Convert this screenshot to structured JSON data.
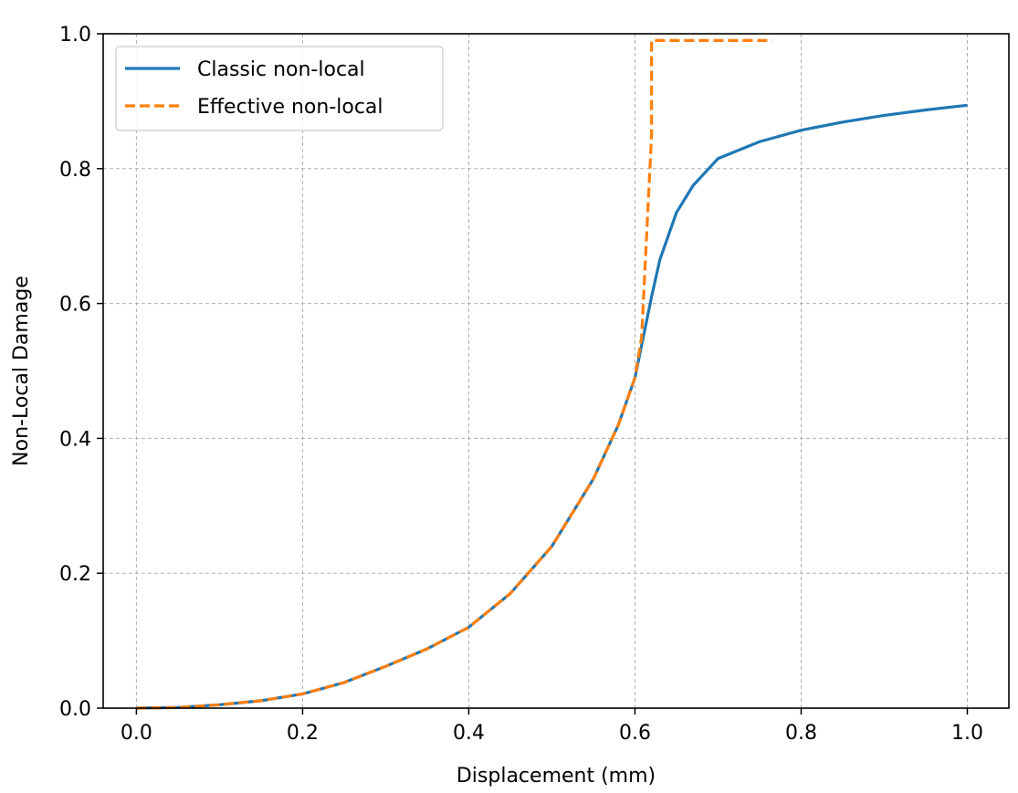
{
  "chart_data": {
    "type": "line",
    "xlabel": "Displacement (mm)",
    "ylabel": "Non-Local Damage",
    "xlim": [
      -0.04,
      1.05
    ],
    "ylim": [
      0.0,
      1.0
    ],
    "xticks": [
      "0.0",
      "0.2",
      "0.4",
      "0.6",
      "0.8",
      "1.0"
    ],
    "yticks": [
      "0.0",
      "0.2",
      "0.4",
      "0.6",
      "0.8",
      "1.0"
    ],
    "grid": true,
    "legend": "top-left",
    "series": [
      {
        "name": "Classic non-local",
        "color": "#1f77b4",
        "style": "solid",
        "x": [
          0.0,
          0.05,
          0.1,
          0.15,
          0.2,
          0.25,
          0.3,
          0.35,
          0.4,
          0.45,
          0.5,
          0.55,
          0.58,
          0.6,
          0.61,
          0.62,
          0.63,
          0.65,
          0.67,
          0.7,
          0.75,
          0.8,
          0.85,
          0.9,
          0.95,
          1.0
        ],
        "y": [
          0.0,
          0.001,
          0.005,
          0.011,
          0.021,
          0.038,
          0.062,
          0.088,
          0.12,
          0.17,
          0.24,
          0.34,
          0.42,
          0.49,
          0.55,
          0.61,
          0.665,
          0.735,
          0.775,
          0.815,
          0.84,
          0.857,
          0.869,
          0.879,
          0.887,
          0.894
        ]
      },
      {
        "name": "Effective non-local",
        "color": "#ff7f0e",
        "style": "dashed",
        "x": [
          0.0,
          0.05,
          0.1,
          0.15,
          0.2,
          0.25,
          0.3,
          0.35,
          0.4,
          0.45,
          0.5,
          0.55,
          0.58,
          0.6,
          0.608,
          0.62,
          0.62,
          0.765
        ],
        "y": [
          0.0,
          0.001,
          0.005,
          0.011,
          0.021,
          0.038,
          0.062,
          0.088,
          0.12,
          0.17,
          0.24,
          0.34,
          0.42,
          0.49,
          0.55,
          0.85,
          0.99,
          0.99
        ]
      }
    ]
  }
}
